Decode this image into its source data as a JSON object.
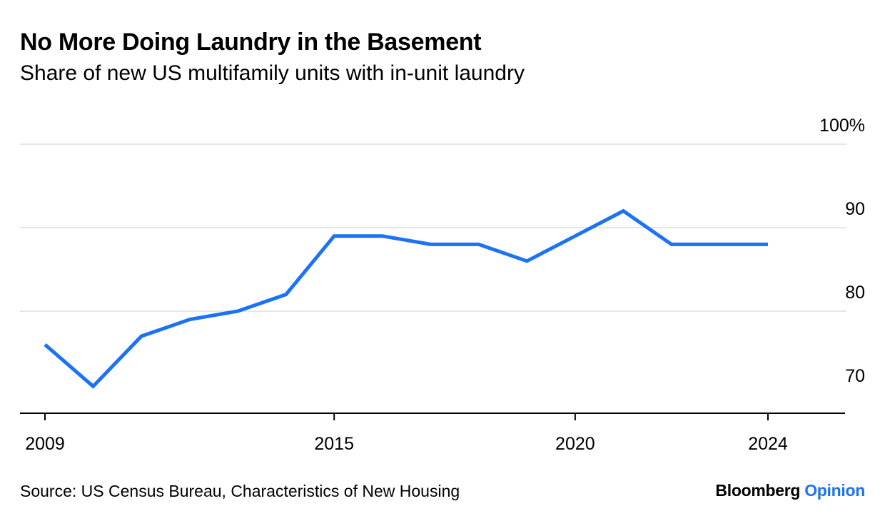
{
  "title": "No More Doing Laundry in the Basement",
  "subtitle": "Share of new US multifamily units with in-unit laundry",
  "chart_data": {
    "type": "line",
    "x": [
      2009,
      2010,
      2011,
      2012,
      2013,
      2014,
      2015,
      2016,
      2017,
      2018,
      2019,
      2020,
      2021,
      2022,
      2023,
      2024
    ],
    "series": [
      {
        "values": [
          76,
          71,
          77,
          79,
          80,
          82,
          89,
          89,
          88,
          88,
          86,
          89,
          92,
          88,
          88,
          88
        ],
        "color": "#1b72f5"
      }
    ],
    "xticks": [
      2009,
      2015,
      2020,
      2024
    ],
    "xtick_labels": [
      "2009",
      "2015",
      "2020",
      "2024"
    ],
    "yticks": [
      70,
      80,
      90,
      100
    ],
    "ytick_labels": [
      "70",
      "80",
      "90",
      "100%"
    ],
    "ylim": [
      69,
      100
    ],
    "xlim": [
      2009,
      2024
    ],
    "yaxis_position": "right",
    "grid": true,
    "gridline_color": "#e6e6e6",
    "axis_color": "#000000"
  },
  "footer": {
    "source": "Source: US Census Bureau, Characteristics of New Housing",
    "brand_main": "Bloomberg",
    "brand_accent": "Opinion"
  }
}
